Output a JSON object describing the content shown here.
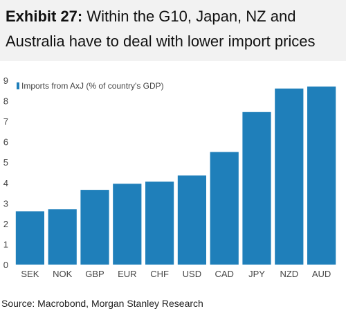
{
  "header": {
    "exhibit": "Exhibit 27:",
    "title_line1": "Within the G10, Japan, NZ and",
    "title_line2": "Australia have to deal with lower import prices"
  },
  "source": "Source: Macrobond, Morgan Stanley Research",
  "colors": {
    "bar": "#1f7fba",
    "header_bg": "#f2f2f2",
    "text": "#111111",
    "axis_text": "#444444"
  },
  "chart_data": {
    "type": "bar",
    "title": "",
    "xlabel": "",
    "ylabel": "",
    "ylim": [
      0,
      9
    ],
    "yticks": [
      0,
      1,
      2,
      3,
      4,
      5,
      6,
      7,
      8,
      9
    ],
    "grid": false,
    "legend_position": "top-left",
    "categories": [
      "SEK",
      "NOK",
      "GBP",
      "EUR",
      "CHF",
      "USD",
      "CAD",
      "JPY",
      "NZD",
      "AUD"
    ],
    "series": [
      {
        "name": "Imports from AxJ (% of country's GDP)",
        "values": [
          2.6,
          2.7,
          3.65,
          3.95,
          4.05,
          4.35,
          5.5,
          7.45,
          8.6,
          8.7
        ]
      }
    ]
  }
}
